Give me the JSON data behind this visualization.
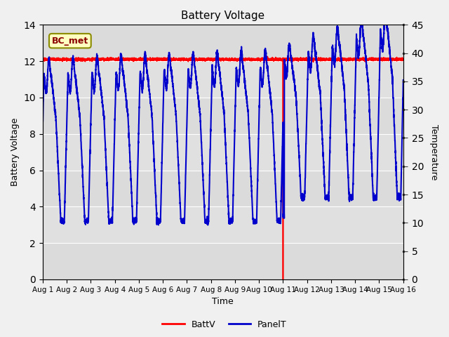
{
  "title": "Battery Voltage",
  "xlabel": "Time",
  "ylabel_left": "Battery Voltage",
  "ylabel_right": "Temperature",
  "xlim": [
    0,
    15
  ],
  "ylim_left": [
    0,
    14
  ],
  "ylim_right": [
    0,
    45
  ],
  "yticks_left": [
    0,
    2,
    4,
    6,
    8,
    10,
    12,
    14
  ],
  "yticks_right": [
    0,
    5,
    10,
    15,
    20,
    25,
    30,
    35,
    40,
    45
  ],
  "xtick_labels": [
    "Aug 1",
    "Aug 2",
    "Aug 3",
    "Aug 4",
    "Aug 5",
    "Aug 6",
    "Aug 7",
    "Aug 8",
    "Aug 9",
    "Aug 10",
    "Aug 11",
    "Aug 12",
    "Aug 13",
    "Aug 14",
    "Aug 15",
    "Aug 16"
  ],
  "xtick_positions": [
    0,
    1,
    2,
    3,
    4,
    5,
    6,
    7,
    8,
    9,
    10,
    11,
    12,
    13,
    14,
    15
  ],
  "grid_color": "#ffffff",
  "bg_color": "#e0e0e0",
  "fig_bg": "#f0f0f0",
  "annotation_text": "BC_met",
  "annotation_bg": "#ffffc0",
  "annotation_edge": "#8b0000",
  "batt_color": "#ff0000",
  "panel_color": "#0000cc",
  "legend_items": [
    "BattV",
    "PanelT"
  ]
}
